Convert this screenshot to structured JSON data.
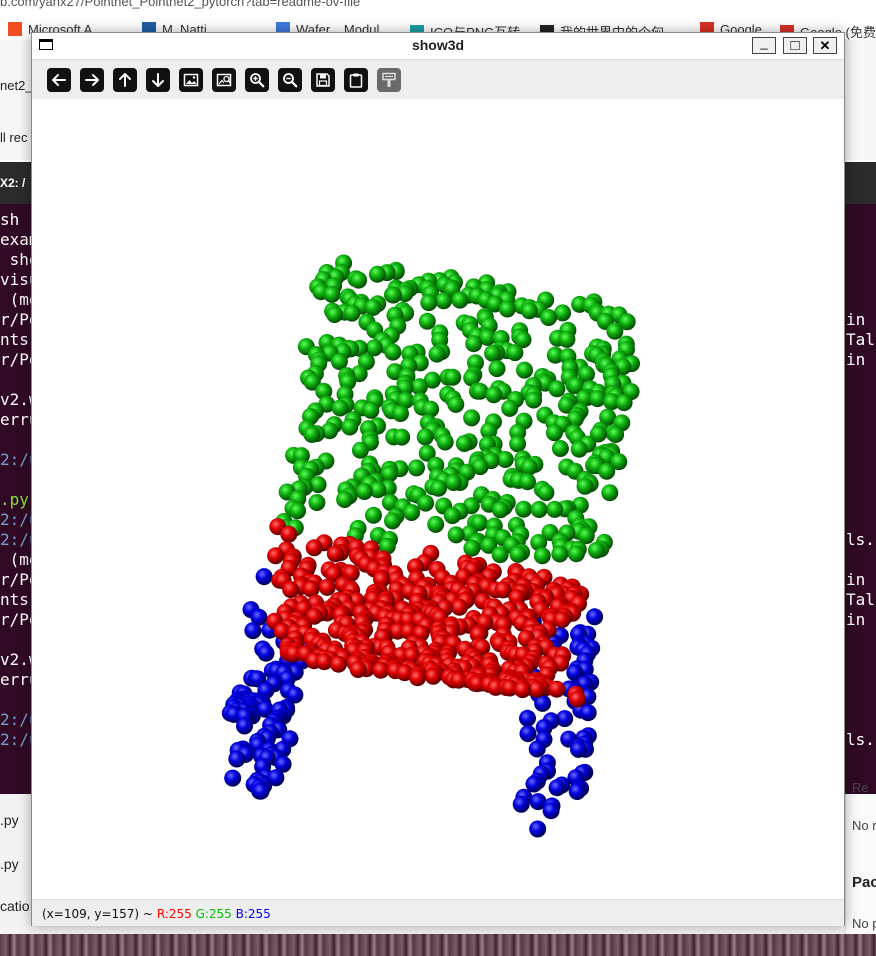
{
  "background": {
    "url_fragment": "b.com/yanx27/Pointnet_Pointnet2_pytorch?tab=readme-ov-file",
    "bookmarks": [
      "Microsoft A...",
      "M. Natti...",
      "Wafer... Modul...",
      "ICO与PNG互转",
      "我的世界中的个匈",
      "Google",
      "Google (免费"
    ],
    "page_tab_text": "net2_",
    "page_sub_text": "ll rec",
    "terminal_title": "X2: /",
    "terminal_lines": [
      {
        "text": "sh",
        "style": "white"
      },
      {
        "text": "exam",
        "style": "white"
      },
      {
        "text": " sho",
        "style": "white"
      },
      {
        "text": "visu",
        "style": "white"
      },
      {
        "text": " (mo",
        "style": "white"
      },
      {
        "text": "r/Po",
        "style": "white"
      },
      {
        "text": "nts(",
        "style": "white"
      },
      {
        "text": "r/Po",
        "style": "white"
      },
      {
        "text": "",
        "style": "white"
      },
      {
        "text": "v2.w",
        "style": "white"
      },
      {
        "text": "erru",
        "style": "white"
      },
      {
        "text": "",
        "style": "white"
      },
      {
        "text": "2:/u",
        "style": "blue"
      },
      {
        "text": "",
        "style": "white"
      },
      {
        "text": ".py",
        "style": "green"
      },
      {
        "text": "2:/u",
        "style": "blue"
      },
      {
        "text": "2:/u",
        "style": "blue"
      },
      {
        "text": " (mo",
        "style": "white"
      },
      {
        "text": "r/Po",
        "style": "white"
      },
      {
        "text": "nts(",
        "style": "white"
      },
      {
        "text": "r/Po",
        "style": "white"
      },
      {
        "text": "",
        "style": "white"
      },
      {
        "text": "v2.w",
        "style": "white"
      },
      {
        "text": "erru",
        "style": "white"
      },
      {
        "text": "",
        "style": "white"
      },
      {
        "text": "2:/u",
        "style": "blue"
      },
      {
        "text": "2:/u",
        "style": "blue"
      }
    ],
    "terminal_right_lines": [
      {
        "text": "in",
        "row": 5
      },
      {
        "text": "Tals",
        "row": 6
      },
      {
        "text": "in",
        "row": 7
      },
      {
        "text": "ls.",
        "row": 16
      },
      {
        "text": "in",
        "row": 18
      },
      {
        "text": "Tals",
        "row": 19
      },
      {
        "text": "in",
        "row": 20
      },
      {
        "text": "ls.",
        "row": 26
      }
    ],
    "bottom_files": [
      ".py",
      ".py",
      "catio"
    ],
    "right_panel": [
      "Re",
      "No r",
      "Pac",
      "No p"
    ]
  },
  "window": {
    "title": "show3d",
    "minimize_label": "_",
    "maximize_label": "□",
    "close_label": "✕",
    "toolbar": [
      {
        "name": "pan-left-button",
        "icon": "arrow-left-icon"
      },
      {
        "name": "pan-right-button",
        "icon": "arrow-right-icon"
      },
      {
        "name": "pan-up-button",
        "icon": "arrow-up-icon"
      },
      {
        "name": "pan-down-button",
        "icon": "arrow-down-icon"
      },
      {
        "name": "zoom-fit-button",
        "icon": "image-icon"
      },
      {
        "name": "zoom-original-button",
        "icon": "image-zoom-icon"
      },
      {
        "name": "zoom-in-button",
        "icon": "zoom-in-icon"
      },
      {
        "name": "zoom-out-button",
        "icon": "zoom-out-icon"
      },
      {
        "name": "save-button",
        "icon": "save-icon"
      },
      {
        "name": "copy-clipboard-button",
        "icon": "clipboard-icon"
      },
      {
        "name": "properties-button",
        "icon": "paint-roller-icon",
        "disabled": true
      }
    ],
    "status": {
      "coords": "(x=109, y=157) ~",
      "r": "R:255",
      "g": "G:255",
      "b": "B:255",
      "r_color": "#ff0000",
      "g_color": "#00c000",
      "b_color": "#0000ff"
    }
  },
  "point_cloud": {
    "object": "chair",
    "colors": {
      "back": "#008c00",
      "seat": "#d40000",
      "legs": "#0000d8"
    }
  }
}
